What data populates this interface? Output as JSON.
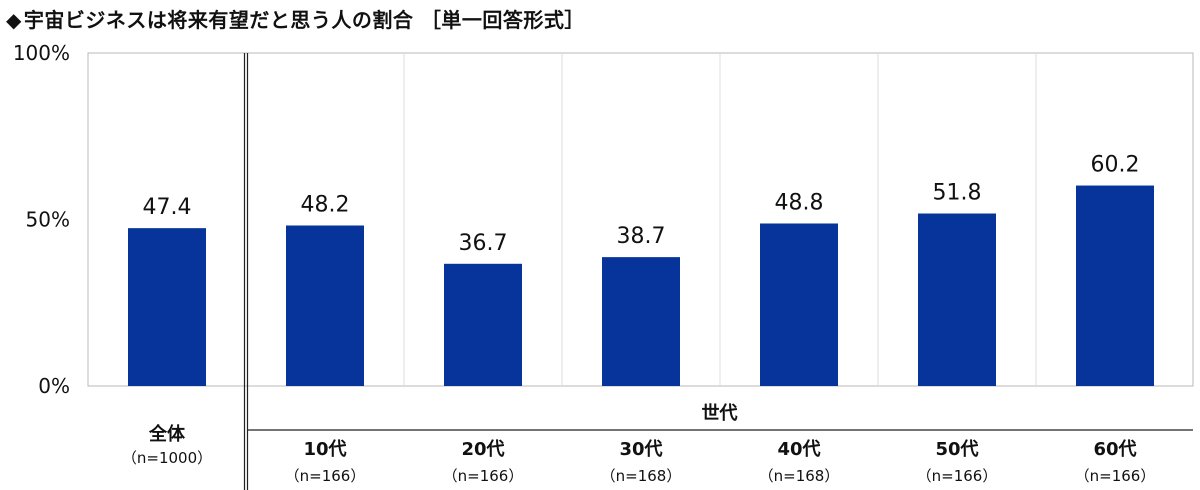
{
  "title": {
    "marker": "◆",
    "text": "宇宙ビジネスは将来有望だと思う人の割合",
    "qualifier": "［単一回答形式］"
  },
  "chart_data": {
    "type": "bar",
    "title": "宇宙ビジネスは将来有望だと思う人の割合",
    "ylim": [
      0,
      100
    ],
    "yticks": [
      "0%",
      "50%",
      "100%"
    ],
    "ytick_values": [
      0,
      50,
      100
    ],
    "categories": [
      "全体",
      "10代",
      "20代",
      "30代",
      "40代",
      "50代",
      "60代"
    ],
    "sample_sizes": [
      "（n=1000）",
      "（n=166）",
      "（n=166）",
      "（n=168）",
      "（n=168）",
      "（n=166）",
      "（n=166）"
    ],
    "values": [
      47.4,
      48.2,
      36.7,
      38.7,
      48.8,
      51.8,
      60.2
    ],
    "data_labels": [
      "47.4",
      "48.2",
      "36.7",
      "38.7",
      "48.8",
      "51.8",
      "60.2"
    ],
    "group_label": "世代",
    "bar_color": "#06349a",
    "grid": "vertical category separators"
  }
}
